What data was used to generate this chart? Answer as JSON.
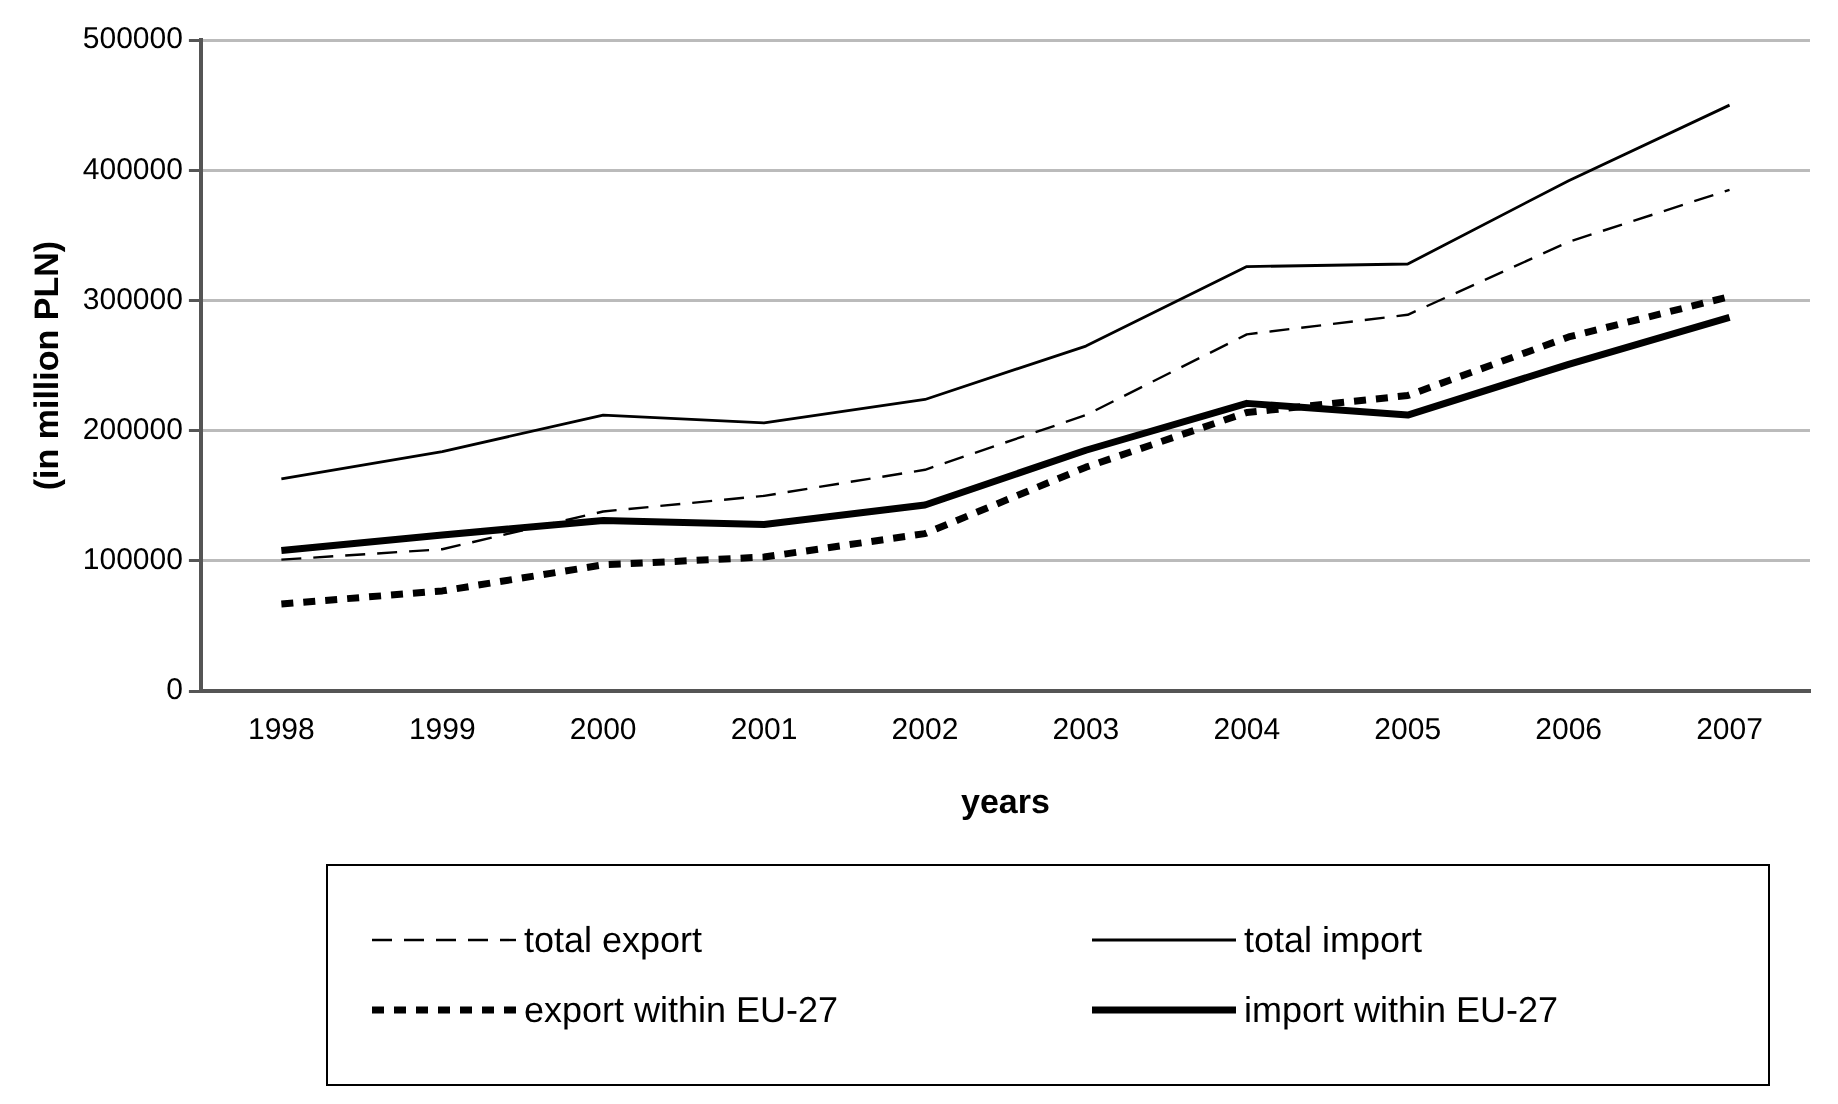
{
  "chart_data": {
    "type": "line",
    "xlabel": "years",
    "ylabel": "(in million PLN)",
    "categories": [
      "1998",
      "1999",
      "2000",
      "2001",
      "2002",
      "2003",
      "2004",
      "2005",
      "2006",
      "2007"
    ],
    "series": [
      {
        "name": "total export",
        "color": "#000000",
        "line_style": "dashed",
        "values": [
          101000,
          109000,
          138000,
          150000,
          170000,
          212000,
          274000,
          289000,
          345000,
          385000
        ]
      },
      {
        "name": "total import",
        "color": "#000000",
        "line_style": "solid",
        "values": [
          163000,
          184000,
          212000,
          206000,
          224000,
          265000,
          326000,
          328000,
          392000,
          450000
        ]
      },
      {
        "name": "export within EU-27",
        "color": "#000000",
        "line_style": "dotted",
        "values": [
          67000,
          77000,
          97000,
          103000,
          121000,
          172000,
          214000,
          227000,
          272000,
          303000
        ]
      },
      {
        "name": "import within EU-27",
        "color": "#000000",
        "line_style": "solid",
        "values": [
          108000,
          120000,
          131000,
          128000,
          143000,
          185000,
          221000,
          212000,
          251000,
          287000
        ]
      }
    ],
    "ylim": [
      0,
      500000
    ],
    "yticks": [
      0,
      100000,
      200000,
      300000,
      400000,
      500000
    ],
    "grid": "y",
    "legend": "bottom",
    "marker": "none"
  }
}
